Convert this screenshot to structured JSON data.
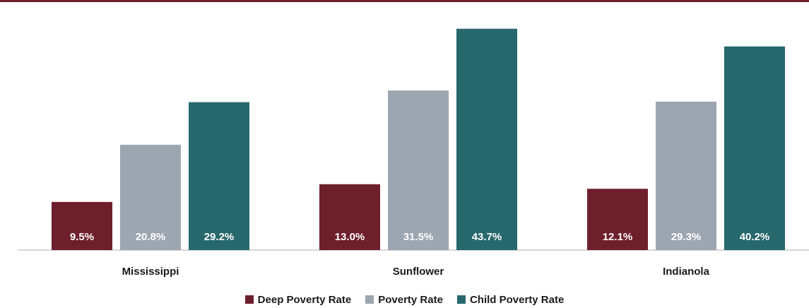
{
  "chart_data": {
    "type": "bar",
    "categories": [
      "Mississippi",
      "Sunflower",
      "Indianola"
    ],
    "series": [
      {
        "name": "Deep Poverty Rate",
        "values": [
          9.5,
          13.0,
          12.1
        ],
        "labels": [
          "9.5%",
          "13.0%",
          "12.1%"
        ],
        "color": "#6e1f2c"
      },
      {
        "name": "Poverty Rate",
        "values": [
          20.8,
          31.5,
          29.3
        ],
        "labels": [
          "20.8%",
          "31.5%",
          "29.3%"
        ],
        "color": "#9ca6b0"
      },
      {
        "name": "Child Poverty Rate",
        "values": [
          29.2,
          43.7,
          40.2
        ],
        "labels": [
          "29.2%",
          "43.7%",
          "40.2%"
        ],
        "color": "#27686c"
      }
    ],
    "ylim": [
      0,
      45
    ],
    "grid": false,
    "legend": "bottom"
  }
}
